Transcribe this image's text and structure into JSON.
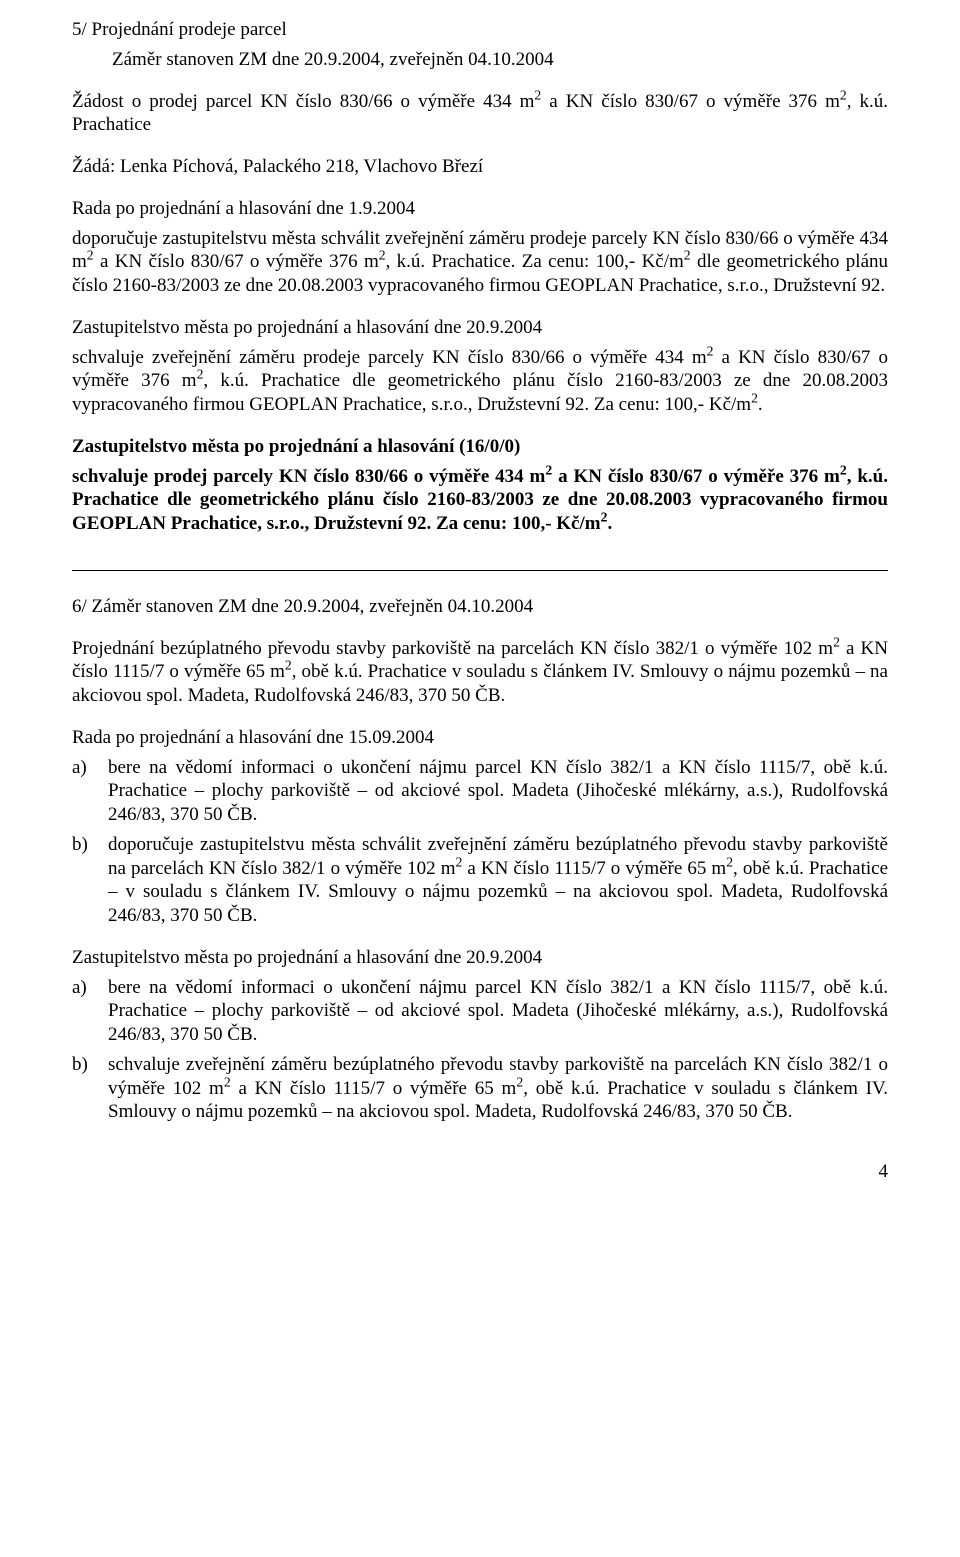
{
  "sec5": {
    "heading": "5/ Projednání prodeje parcel",
    "sub": "Záměr stanoven ZM dne 20.9.2004, zveřejněn 04.10.2004",
    "p1a": "Žádost o prodej parcel KN číslo 830/66 o výměře 434 m",
    "p1b": " a KN číslo 830/67 o výměře 376 m",
    "p1c": ", k.ú. Prachatice",
    "p2": "Žádá: Lenka Píchová, Palackého 218, Vlachovo Březí",
    "p3": "Rada po projednání a hlasování dne 1.9.2004",
    "p4a": "doporučuje zastupitelstvu města schválit zveřejnění záměru prodeje parcely KN číslo 830/66 o výměře 434 m",
    "p4b": " a KN číslo 830/67 o výměře 376 m",
    "p4c": ", k.ú. Prachatice. Za cenu: 100,- Kč/m",
    "p4d": " dle geometrického plánu číslo 2160-83/2003 ze dne 20.08.2003 vypracovaného firmou GEOPLAN Prachatice, s.r.o., Družstevní 92.",
    "p5": "Zastupitelstvo města po projednání a hlasování dne 20.9.2004",
    "p6a": "schvaluje zveřejnění záměru prodeje parcely KN číslo 830/66 o výměře 434 m",
    "p6b": " a KN číslo 830/67 o výměře 376 m",
    "p6c": ", k.ú. Prachatice dle geometrického plánu číslo 2160-83/2003 ze dne 20.08.2003 vypracovaného firmou GEOPLAN Prachatice, s.r.o., Družstevní 92. Za cenu: 100,- Kč/m",
    "p6d": ".",
    "p7": "Zastupitelstvo města po projednání a hlasování  (16/0/0)",
    "p8a": "schvaluje prodej parcely KN číslo 830/66 o výměře 434 m",
    "p8b": " a KN číslo 830/67 o výměře 376 m",
    "p8c": ", k.ú. Prachatice dle geometrického plánu číslo 2160-83/2003 ze dne 20.08.2003 vypracovaného firmou GEOPLAN Prachatice, s.r.o., Družstevní 92. Za cenu: 100,- Kč/m",
    "p8d": "."
  },
  "sec6": {
    "heading": "6/ Záměr stanoven ZM dne 20.9.2004, zveřejněn 04.10.2004",
    "p1a": "Projednání bezúplatného převodu stavby parkoviště na parcelách KN číslo 382/1 o výměře 102 m",
    "p1b": " a KN číslo 1115/7 o výměře 65 m",
    "p1c": ", obě k.ú. Prachatice  v souladu s článkem IV. Smlouvy o nájmu pozemků – na akciovou spol. Madeta, Rudolfovská 246/83, 370 50 ČB.",
    "p2": "Rada po projednání a hlasování dne 15.09.2004",
    "a_marker": "a)",
    "a_text": "bere na vědomí informaci o ukončení nájmu parcel KN číslo 382/1 a KN číslo 1115/7, obě k.ú. Prachatice – plochy parkoviště – od akciové spol. Madeta (Jihočeské mlékárny, a.s.), Rudolfovská 246/83, 370 50 ČB.",
    "b_marker": "b)",
    "b_a": "doporučuje zastupitelstvu města schválit zveřejnění záměru bezúplatného převodu stavby parkoviště na parcelách KN číslo 382/1 o výměře 102 m",
    "b_b": " a KN číslo 1115/7 o výměře 65 m",
    "b_c": ", obě k.ú. Prachatice – v souladu s článkem IV. Smlouvy o nájmu pozemků – na akciovou spol. Madeta, Rudolfovská 246/83, 370 50 ČB.",
    "p3": "Zastupitelstvo města po projednání a hlasování dne 20.9.2004",
    "a2_marker": "a)",
    "a2_text": "bere na vědomí informaci o ukončení nájmu parcel KN číslo 382/1 a KN číslo 1115/7, obě k.ú. Prachatice – plochy parkoviště – od akciové spol. Madeta (Jihočeské mlékárny, a.s.), Rudolfovská 246/83, 370 50 ČB.",
    "b2_marker": "b)",
    "b2_a": "schvaluje zveřejnění záměru bezúplatného převodu stavby parkoviště na parcelách KN číslo 382/1 o výměře 102 m",
    "b2_b": " a KN číslo 1115/7 o výměře 65 m",
    "b2_c": ", obě k.ú. Prachatice v souladu s článkem IV. Smlouvy o nájmu pozemků – na akciovou spol. Madeta, Rudolfovská 246/83, 370 50 ČB."
  },
  "sup2": "2",
  "page_number": "4"
}
